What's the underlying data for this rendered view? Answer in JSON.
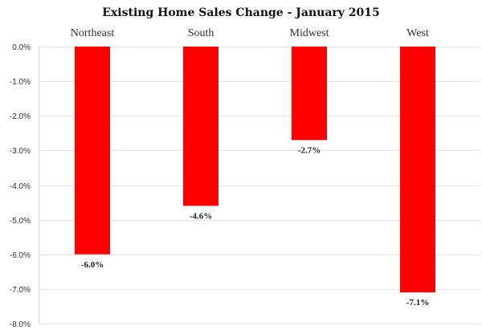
{
  "chart_data": {
    "type": "bar",
    "title": "Existing Home Sales Change - January 2015",
    "categories": [
      "Northeast",
      "South",
      "Midwest",
      "West"
    ],
    "values": [
      -6.0,
      -4.6,
      -2.7,
      -7.1
    ],
    "data_labels": [
      "-6.0%",
      "-4.6%",
      "-2.7%",
      "-7.1%"
    ],
    "ylim": [
      -8.0,
      0.0
    ],
    "yticks": [
      0.0,
      -1.0,
      -2.0,
      -3.0,
      -4.0,
      -5.0,
      -6.0,
      -7.0,
      -8.0
    ],
    "ytick_labels": [
      "0.0%",
      "-1.0%",
      "-2.0%",
      "-3.0%",
      "-4.0%",
      "-5.0%",
      "-6.0%",
      "-7.0%",
      "-8.0%"
    ],
    "xlabel": "",
    "ylabel": "",
    "grid": true,
    "category_labels_position": "top",
    "bar_color": "#ff0000",
    "gridline_color": "#e6e6e6"
  }
}
